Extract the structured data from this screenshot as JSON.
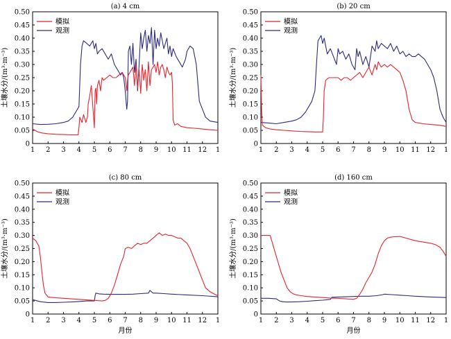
{
  "chart_data": [
    {
      "type": "line",
      "title": "(a) 4 cm",
      "xlabel": "",
      "ylabel": "土壤水分/(m³·m⁻³)",
      "xticks": [
        "1",
        "2",
        "3",
        "4",
        "5",
        "6",
        "7",
        "8",
        "9",
        "10",
        "11",
        "12",
        "1"
      ],
      "yticks": [
        "0",
        "0.05",
        "0.10",
        "0.15",
        "0.20",
        "0.25",
        "0.30",
        "0.35",
        "0.40",
        "0.45",
        "0.50"
      ],
      "xlim": [
        1,
        13
      ],
      "ylim": [
        0,
        0.5
      ],
      "grid": false,
      "legend": "top-left",
      "series": [
        {
          "name": "模拟",
          "color": "#e8232a",
          "x": [
            1,
            1.3,
            1.6,
            2,
            2.5,
            3,
            3.5,
            3.95,
            4.0,
            4.05,
            4.2,
            4.3,
            4.45,
            4.55,
            4.6,
            4.7,
            4.8,
            5.0,
            5.05,
            5.1,
            5.15,
            5.2,
            5.3,
            5.4,
            5.5,
            5.6,
            5.8,
            6.0,
            6.2,
            6.4,
            6.6,
            6.8,
            7.0,
            7.1,
            7.15,
            7.2,
            7.3,
            7.5,
            7.6,
            7.7,
            7.8,
            7.9,
            8.0,
            8.1,
            8.2,
            8.3,
            8.4,
            8.5,
            8.6,
            8.7,
            8.8,
            8.9,
            9.0,
            9.1,
            9.2,
            9.3,
            9.4,
            9.5,
            9.6,
            9.7,
            9.8,
            9.9,
            10.0,
            10.05,
            10.1,
            10.2,
            10.4,
            10.6,
            11,
            11.5,
            12,
            12.5,
            13
          ],
          "y": [
            0.055,
            0.045,
            0.04,
            0.037,
            0.035,
            0.034,
            0.033,
            0.033,
            0.06,
            0.1,
            0.08,
            0.11,
            0.08,
            0.1,
            0.15,
            0.18,
            0.22,
            0.06,
            0.2,
            0.21,
            0.15,
            0.22,
            0.24,
            0.2,
            0.25,
            0.24,
            0.25,
            0.26,
            0.25,
            0.25,
            0.26,
            0.27,
            0.25,
            0.2,
            0.24,
            0.26,
            0.27,
            0.29,
            0.22,
            0.3,
            0.21,
            0.28,
            0.19,
            0.3,
            0.24,
            0.28,
            0.2,
            0.31,
            0.22,
            0.28,
            0.29,
            0.3,
            0.27,
            0.31,
            0.26,
            0.29,
            0.3,
            0.28,
            0.25,
            0.29,
            0.27,
            0.26,
            0.27,
            0.23,
            0.09,
            0.07,
            0.075,
            0.065,
            0.06,
            0.058,
            0.055,
            0.052,
            0.05
          ]
        },
        {
          "name": "观测",
          "color": "#2b2a7d",
          "x": [
            1,
            1.5,
            2,
            2.5,
            3,
            3.3,
            3.6,
            3.8,
            4.0,
            4.1,
            4.2,
            4.3,
            4.5,
            4.7,
            4.9,
            5.0,
            5.1,
            5.2,
            5.3,
            5.5,
            5.7,
            5.9,
            6.1,
            6.3,
            6.5,
            6.7,
            6.8,
            6.9,
            7.0,
            7.1,
            7.15,
            7.2,
            7.3,
            7.4,
            7.5,
            7.6,
            7.7,
            7.8,
            7.9,
            8.0,
            8.1,
            8.2,
            8.3,
            8.4,
            8.5,
            8.6,
            8.7,
            8.8,
            8.9,
            9.0,
            9.1,
            9.2,
            9.3,
            9.4,
            9.5,
            9.6,
            9.7,
            9.8,
            9.9,
            10.0,
            10.1,
            10.3,
            10.5,
            10.7,
            10.9,
            11.0,
            11.2,
            11.4,
            11.6,
            11.8,
            12.0,
            12.2,
            12.5,
            13
          ],
          "y": [
            0.075,
            0.072,
            0.073,
            0.075,
            0.08,
            0.085,
            0.1,
            0.12,
            0.14,
            0.3,
            0.37,
            0.39,
            0.38,
            0.37,
            0.39,
            0.36,
            0.38,
            0.34,
            0.35,
            0.36,
            0.34,
            0.32,
            0.34,
            0.3,
            0.28,
            0.26,
            0.27,
            0.25,
            0.2,
            0.13,
            0.16,
            0.35,
            0.37,
            0.3,
            0.38,
            0.27,
            0.32,
            0.2,
            0.3,
            0.42,
            0.36,
            0.4,
            0.43,
            0.35,
            0.41,
            0.38,
            0.44,
            0.3,
            0.43,
            0.36,
            0.4,
            0.37,
            0.42,
            0.39,
            0.36,
            0.38,
            0.4,
            0.34,
            0.37,
            0.33,
            0.36,
            0.33,
            0.31,
            0.29,
            0.32,
            0.35,
            0.37,
            0.36,
            0.3,
            0.16,
            0.13,
            0.1,
            0.085,
            0.08
          ]
        }
      ]
    },
    {
      "type": "line",
      "title": "(b) 20 cm",
      "xlabel": "",
      "ylabel": "土壤水分/(m³·m⁻³)",
      "xticks": [
        "1",
        "2",
        "3",
        "4",
        "5",
        "6",
        "7",
        "8",
        "9",
        "10",
        "11",
        "12",
        "1"
      ],
      "yticks": [
        "0",
        "0.05",
        "0.10",
        "0.15",
        "0.20",
        "0.25",
        "0.30",
        "0.35",
        "0.40",
        "0.45",
        "0.50"
      ],
      "xlim": [
        1,
        13
      ],
      "ylim": [
        0,
        0.5
      ],
      "grid": false,
      "legend": "top-left",
      "series": [
        {
          "name": "模拟",
          "color": "#e8232a",
          "x": [
            1,
            1.05,
            1.1,
            1.3,
            1.6,
            2,
            2.5,
            3,
            3.5,
            4,
            4.5,
            5.0,
            5.05,
            5.1,
            5.2,
            5.4,
            5.6,
            5.8,
            6.0,
            6.2,
            6.4,
            6.6,
            6.8,
            7.0,
            7.2,
            7.4,
            7.6,
            7.8,
            8.0,
            8.2,
            8.4,
            8.5,
            8.6,
            8.7,
            8.8,
            9.0,
            9.2,
            9.4,
            9.6,
            9.8,
            10.0,
            10.2,
            10.4,
            10.6,
            10.8,
            11,
            11.5,
            12,
            12.5,
            13
          ],
          "y": [
            0.26,
            0.12,
            0.07,
            0.06,
            0.055,
            0.052,
            0.05,
            0.048,
            0.046,
            0.045,
            0.044,
            0.044,
            0.1,
            0.2,
            0.24,
            0.25,
            0.25,
            0.25,
            0.25,
            0.24,
            0.25,
            0.25,
            0.24,
            0.25,
            0.26,
            0.27,
            0.25,
            0.27,
            0.29,
            0.26,
            0.3,
            0.28,
            0.31,
            0.3,
            0.29,
            0.3,
            0.29,
            0.3,
            0.29,
            0.28,
            0.27,
            0.24,
            0.2,
            0.13,
            0.09,
            0.08,
            0.075,
            0.072,
            0.07,
            0.065
          ]
        },
        {
          "name": "观测",
          "color": "#2b2a7d",
          "x": [
            1,
            1.5,
            2,
            2.5,
            3,
            3.3,
            3.6,
            3.9,
            4.1,
            4.3,
            4.5,
            4.6,
            4.7,
            4.8,
            4.9,
            5.0,
            5.1,
            5.2,
            5.3,
            5.5,
            5.7,
            5.9,
            6.0,
            6.1,
            6.3,
            6.5,
            6.7,
            6.9,
            7.1,
            7.2,
            7.3,
            7.4,
            7.6,
            7.8,
            8.0,
            8.2,
            8.4,
            8.5,
            8.6,
            8.8,
            9.0,
            9.2,
            9.4,
            9.6,
            9.8,
            10.0,
            10.2,
            10.4,
            10.6,
            10.8,
            11.0,
            11.2,
            11.4,
            11.6,
            11.8,
            12.0,
            12.2,
            12.4,
            12.6,
            12.8,
            13
          ],
          "y": [
            0.08,
            0.078,
            0.075,
            0.08,
            0.085,
            0.09,
            0.1,
            0.12,
            0.14,
            0.16,
            0.2,
            0.3,
            0.39,
            0.4,
            0.41,
            0.38,
            0.4,
            0.37,
            0.34,
            0.36,
            0.33,
            0.3,
            0.36,
            0.34,
            0.35,
            0.32,
            0.34,
            0.3,
            0.28,
            0.36,
            0.33,
            0.35,
            0.3,
            0.33,
            0.29,
            0.37,
            0.35,
            0.39,
            0.36,
            0.38,
            0.37,
            0.36,
            0.38,
            0.35,
            0.37,
            0.34,
            0.35,
            0.33,
            0.34,
            0.33,
            0.33,
            0.34,
            0.33,
            0.32,
            0.3,
            0.28,
            0.25,
            0.2,
            0.13,
            0.1,
            0.08
          ]
        }
      ]
    },
    {
      "type": "line",
      "title": "(c) 80 cm",
      "xlabel": "月份",
      "ylabel": "土壤水分/(m³·m⁻³)",
      "xticks": [
        "1",
        "2",
        "3",
        "4",
        "5",
        "6",
        "7",
        "8",
        "9",
        "10",
        "11",
        "12",
        "1"
      ],
      "yticks": [
        "0",
        "0.05",
        "0.10",
        "0.15",
        "0.20",
        "0.25",
        "0.30",
        "0.35",
        "0.40",
        "0.45",
        "0.50"
      ],
      "xlim": [
        1,
        13
      ],
      "ylim": [
        0,
        0.5
      ],
      "grid": false,
      "legend": "top-left",
      "series": [
        {
          "name": "模拟",
          "color": "#e8232a",
          "x": [
            1,
            1.2,
            1.4,
            1.5,
            1.6,
            1.7,
            1.8,
            2.0,
            2.5,
            3,
            3.5,
            4,
            4.5,
            5,
            5.5,
            5.7,
            5.9,
            6.1,
            6.3,
            6.5,
            6.7,
            6.9,
            7.0,
            7.2,
            7.4,
            7.6,
            7.8,
            8.0,
            8.2,
            8.4,
            8.6,
            8.8,
            9.0,
            9.2,
            9.4,
            9.6,
            9.8,
            10.0,
            10.2,
            10.4,
            10.6,
            10.8,
            11.0,
            11.2,
            11.4,
            11.6,
            11.8,
            12.0,
            12.2,
            12.5,
            12.8,
            13
          ],
          "y": [
            0.29,
            0.28,
            0.26,
            0.22,
            0.16,
            0.11,
            0.08,
            0.065,
            0.062,
            0.06,
            0.058,
            0.056,
            0.054,
            0.052,
            0.05,
            0.052,
            0.06,
            0.08,
            0.11,
            0.15,
            0.19,
            0.22,
            0.25,
            0.255,
            0.25,
            0.26,
            0.27,
            0.265,
            0.27,
            0.27,
            0.28,
            0.29,
            0.3,
            0.31,
            0.3,
            0.305,
            0.3,
            0.3,
            0.295,
            0.29,
            0.29,
            0.28,
            0.27,
            0.25,
            0.22,
            0.19,
            0.16,
            0.13,
            0.1,
            0.085,
            0.075,
            0.07
          ]
        },
        {
          "name": "观测",
          "color": "#2b2a7d",
          "x": [
            1,
            1.5,
            2,
            2.5,
            3,
            3.5,
            4,
            4.5,
            5,
            5.05,
            5.1,
            5.3,
            5.6,
            6,
            6.5,
            7,
            7.5,
            8,
            8.5,
            8.6,
            8.7,
            8.8,
            9,
            9.5,
            10,
            11,
            12,
            13
          ],
          "y": [
            0.055,
            0.047,
            0.044,
            0.044,
            0.045,
            0.046,
            0.048,
            0.05,
            0.05,
            0.07,
            0.08,
            0.077,
            0.076,
            0.075,
            0.075,
            0.075,
            0.076,
            0.078,
            0.08,
            0.09,
            0.085,
            0.08,
            0.08,
            0.078,
            0.076,
            0.073,
            0.07,
            0.066
          ]
        }
      ]
    },
    {
      "type": "line",
      "title": "(d) 160 cm",
      "xlabel": "月份",
      "ylabel": "土壤水分/(m³·m⁻³)",
      "xticks": [
        "1",
        "2",
        "3",
        "4",
        "5",
        "6",
        "7",
        "8",
        "9",
        "10",
        "11",
        "12",
        "1"
      ],
      "yticks": [
        "0",
        "0.05",
        "0.10",
        "0.15",
        "0.20",
        "0.25",
        "0.30",
        "0.35",
        "0.40",
        "0.45",
        "0.50"
      ],
      "xlim": [
        1,
        13
      ],
      "ylim": [
        0,
        0.5
      ],
      "grid": false,
      "legend": "top-left",
      "series": [
        {
          "name": "模拟",
          "color": "#e8232a",
          "x": [
            1,
            1.3,
            1.6,
            1.7,
            1.9,
            2.1,
            2.3,
            2.5,
            2.7,
            2.9,
            3.1,
            3.3,
            3.6,
            4,
            4.5,
            5,
            5.5,
            6,
            6.5,
            7,
            7.2,
            7.4,
            7.6,
            7.8,
            8.0,
            8.2,
            8.4,
            8.6,
            8.8,
            9.0,
            9.2,
            9.4,
            9.6,
            9.8,
            10.0,
            10.2,
            10.5,
            11,
            11.5,
            12,
            12.3,
            12.6,
            12.8,
            13
          ],
          "y": [
            0.3,
            0.3,
            0.3,
            0.28,
            0.24,
            0.2,
            0.16,
            0.13,
            0.1,
            0.085,
            0.077,
            0.073,
            0.07,
            0.067,
            0.065,
            0.063,
            0.061,
            0.06,
            0.058,
            0.056,
            0.06,
            0.075,
            0.095,
            0.12,
            0.14,
            0.16,
            0.19,
            0.23,
            0.26,
            0.28,
            0.29,
            0.293,
            0.295,
            0.295,
            0.296,
            0.293,
            0.288,
            0.28,
            0.275,
            0.27,
            0.265,
            0.255,
            0.24,
            0.22
          ]
        },
        {
          "name": "观测",
          "color": "#2b2a7d",
          "x": [
            1,
            1.5,
            2,
            2.2,
            2.4,
            2.6,
            3,
            3.5,
            4,
            4.5,
            5,
            5.5,
            5.6,
            6,
            6.5,
            7,
            7.5,
            8,
            8.5,
            8.9,
            9.0,
            9.5,
            10,
            10.5,
            11,
            12,
            13
          ],
          "y": [
            0.06,
            0.06,
            0.058,
            0.05,
            0.047,
            0.046,
            0.046,
            0.047,
            0.049,
            0.051,
            0.053,
            0.056,
            0.064,
            0.065,
            0.066,
            0.067,
            0.068,
            0.068,
            0.07,
            0.074,
            0.076,
            0.074,
            0.072,
            0.07,
            0.068,
            0.065,
            0.063
          ]
        }
      ]
    }
  ]
}
